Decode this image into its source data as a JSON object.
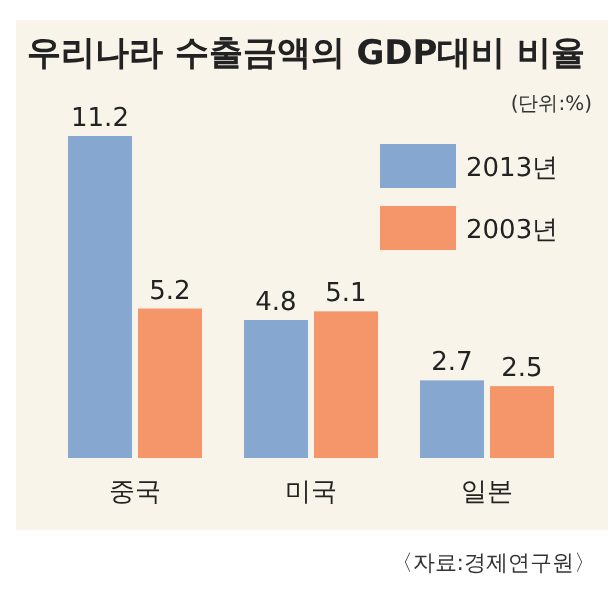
{
  "chart_data": {
    "type": "bar",
    "title": "우리나라 수출금액의 GDP대비 비율",
    "subtitle": "(단위:%)",
    "categories": [
      "중국",
      "미국",
      "일본"
    ],
    "series": [
      {
        "name": "2013년",
        "color": "#86a8d0",
        "values": [
          11.2,
          4.8,
          2.7
        ]
      },
      {
        "name": "2003년",
        "color": "#f4956a",
        "values": [
          5.2,
          5.1,
          2.5
        ]
      }
    ],
    "data_labels": true,
    "legend": "top right",
    "annotations": [
      "〈자료:경제연구원〉"
    ]
  }
}
